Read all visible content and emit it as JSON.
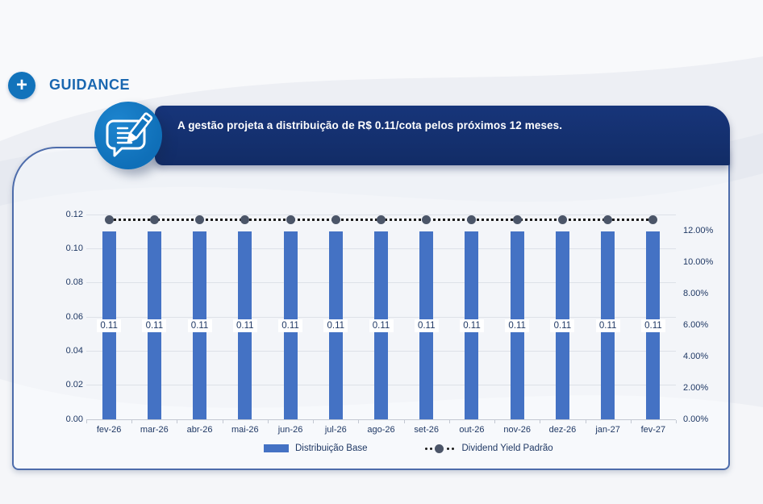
{
  "header": {
    "plus_icon": "+",
    "title": "GUIDANCE"
  },
  "callout": {
    "text": "A gestão projeta a distribuição de R$ 0.11/cota pelos próximos 12 meses."
  },
  "colors": {
    "accent_blue": "#1273bb",
    "banner_navy": "#14316f",
    "bar_blue": "#4472c4",
    "marker_gray": "#4b5568",
    "axis_text_navy": "#1f3864",
    "panel_border": "#4d6cab"
  },
  "chart_data": {
    "type": "bar",
    "title": "",
    "categories": [
      "fev-26",
      "mar-26",
      "abr-26",
      "mai-26",
      "jun-26",
      "jul-26",
      "ago-26",
      "set-26",
      "out-26",
      "nov-26",
      "dez-26",
      "jan-27",
      "fev-27"
    ],
    "series": [
      {
        "name": "Distribuição Base",
        "type": "bar",
        "axis": "left",
        "values": [
          0.11,
          0.11,
          0.11,
          0.11,
          0.11,
          0.11,
          0.11,
          0.11,
          0.11,
          0.11,
          0.11,
          0.11,
          0.11
        ],
        "data_labels": [
          "0.11",
          "0.11",
          "0.11",
          "0.11",
          "0.11",
          "0.11",
          "0.11",
          "0.11",
          "0.11",
          "0.11",
          "0.11",
          "0.11",
          "0.11"
        ],
        "color": "#4472c4"
      },
      {
        "name": "Dividend Yield Padrão",
        "type": "dotted-line",
        "axis": "right",
        "values_percent_estimated": [
          12.7,
          12.7,
          12.7,
          12.7,
          12.7,
          12.7,
          12.7,
          12.7,
          12.7,
          12.7,
          12.7,
          12.7,
          12.7
        ],
        "color": "#4b5568"
      }
    ],
    "left_axis": {
      "min": 0,
      "max": 0.12,
      "step": 0.02,
      "ticks": [
        "0.00",
        "0.02",
        "0.04",
        "0.06",
        "0.08",
        "0.10",
        "0.12"
      ]
    },
    "right_axis": {
      "min_percent": 0,
      "labeled_max_percent": 12,
      "step_percent": 2,
      "ticks": [
        "0.00%",
        "2.00%",
        "4.00%",
        "6.00%",
        "8.00%",
        "10.00%",
        "12.00%"
      ]
    },
    "grid": true,
    "legend_position": "bottom"
  }
}
